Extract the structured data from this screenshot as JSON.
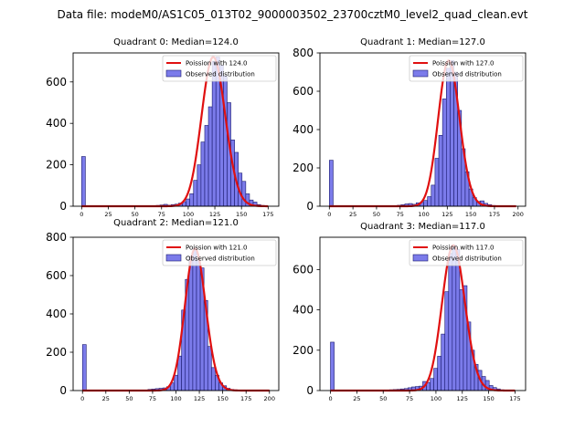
{
  "figure": {
    "suptitle": "Data file: modeM0/AS1C05_013T02_9000003502_23700cztM0_level2_quad_clean.evt"
  },
  "colors": {
    "hist_fill": "#7b7bea",
    "hist_edge": "#1a1a6e",
    "poisson_line": "#e01010"
  },
  "chart_data": [
    {
      "type": "bar",
      "title": "Quadrant 0: Median=124.0",
      "xlabel": "",
      "ylabel": "",
      "xlim": [
        -8,
        185
      ],
      "ylim": [
        0,
        740
      ],
      "xticks": [
        0,
        25,
        50,
        75,
        100,
        125,
        150,
        175
      ],
      "yticks": [
        0,
        200,
        400,
        600
      ],
      "bin_width": 3.5,
      "zero_bin": 240,
      "hist_bins": [
        [
          70,
          4
        ],
        [
          73.5,
          6
        ],
        [
          77,
          9
        ],
        [
          80.5,
          5
        ],
        [
          84,
          8
        ],
        [
          87.5,
          10
        ],
        [
          91,
          15
        ],
        [
          94.5,
          22
        ],
        [
          98,
          35
        ],
        [
          101.5,
          60
        ],
        [
          105,
          125
        ],
        [
          108.5,
          200
        ],
        [
          112,
          310
        ],
        [
          115.5,
          390
        ],
        [
          119,
          480
        ],
        [
          122.5,
          700
        ],
        [
          126,
          720
        ],
        [
          129.5,
          680
        ],
        [
          133,
          630
        ],
        [
          136.5,
          500
        ],
        [
          140,
          320
        ],
        [
          143.5,
          260
        ],
        [
          147,
          160
        ],
        [
          150.5,
          120
        ],
        [
          154,
          60
        ],
        [
          157.5,
          30
        ],
        [
          161,
          20
        ],
        [
          164.5,
          8
        ],
        [
          168,
          4
        ]
      ],
      "poisson_mean": 124.0,
      "curve_range": [
        0,
        175
      ],
      "legend": {
        "line_label": "Poission with 124.0",
        "bar_label": "Observed distribution",
        "position": "upper right"
      }
    },
    {
      "type": "bar",
      "title": "Quadrant 1: Median=127.0",
      "xlabel": "",
      "ylabel": "",
      "xlim": [
        -10,
        208
      ],
      "ylim": [
        0,
        800
      ],
      "xticks": [
        0,
        25,
        50,
        75,
        100,
        125,
        150,
        175,
        200
      ],
      "yticks": [
        0,
        200,
        400,
        600,
        800
      ],
      "bin_width": 4,
      "zero_bin": 240,
      "hist_bins": [
        [
          72,
          5
        ],
        [
          76,
          8
        ],
        [
          80,
          12
        ],
        [
          84,
          14
        ],
        [
          88,
          10
        ],
        [
          92,
          18
        ],
        [
          96,
          20
        ],
        [
          100,
          30
        ],
        [
          104,
          50
        ],
        [
          108,
          110
        ],
        [
          112,
          250
        ],
        [
          116,
          370
        ],
        [
          120,
          560
        ],
        [
          124,
          720
        ],
        [
          128,
          760
        ],
        [
          132,
          700
        ],
        [
          136,
          500
        ],
        [
          140,
          300
        ],
        [
          144,
          180
        ],
        [
          148,
          90
        ],
        [
          152,
          45
        ],
        [
          156,
          25
        ],
        [
          160,
          28
        ],
        [
          164,
          15
        ],
        [
          168,
          8
        ],
        [
          172,
          4
        ],
        [
          176,
          2
        ]
      ],
      "poisson_mean": 127.0,
      "curve_range": [
        0,
        198
      ],
      "legend": {
        "line_label": "Poission with 127.0",
        "bar_label": "Observed distribution",
        "position": "upper right"
      }
    },
    {
      "type": "bar",
      "title": "Quadrant 2: Median=121.0",
      "xlabel": "",
      "ylabel": "",
      "xlim": [
        -10,
        210
      ],
      "ylim": [
        0,
        800
      ],
      "xticks": [
        0,
        25,
        50,
        75,
        100,
        125,
        150,
        175,
        200
      ],
      "yticks": [
        0,
        200,
        400,
        600,
        800
      ],
      "bin_width": 4,
      "zero_bin": 240,
      "hist_bins": [
        [
          70,
          6
        ],
        [
          74,
          8
        ],
        [
          78,
          10
        ],
        [
          82,
          12
        ],
        [
          86,
          14
        ],
        [
          90,
          20
        ],
        [
          94,
          40
        ],
        [
          98,
          80
        ],
        [
          102,
          180
        ],
        [
          106,
          420
        ],
        [
          110,
          580
        ],
        [
          114,
          700
        ],
        [
          118,
          740
        ],
        [
          122,
          680
        ],
        [
          126,
          640
        ],
        [
          130,
          470
        ],
        [
          134,
          230
        ],
        [
          138,
          120
        ],
        [
          142,
          80
        ],
        [
          146,
          40
        ],
        [
          150,
          25
        ],
        [
          154,
          12
        ],
        [
          158,
          6
        ],
        [
          162,
          4
        ],
        [
          166,
          2
        ]
      ],
      "poisson_mean": 121.0,
      "curve_range": [
        0,
        200
      ],
      "legend": {
        "line_label": "Poission with 121.0",
        "bar_label": "Observed distribution",
        "position": "upper right"
      }
    },
    {
      "type": "bar",
      "title": "Quadrant 3: Median=117.0",
      "xlabel": "",
      "ylabel": "",
      "xlim": [
        -10,
        185
      ],
      "ylim": [
        0,
        760
      ],
      "xticks": [
        0,
        25,
        50,
        75,
        100,
        125,
        150,
        175
      ],
      "yticks": [
        0,
        200,
        400,
        600
      ],
      "bin_width": 3.5,
      "zero_bin": 240,
      "hist_bins": [
        [
          56,
          4
        ],
        [
          59.5,
          5
        ],
        [
          63,
          6
        ],
        [
          66.5,
          8
        ],
        [
          70,
          10
        ],
        [
          73.5,
          14
        ],
        [
          77,
          18
        ],
        [
          80.5,
          20
        ],
        [
          84,
          22
        ],
        [
          87.5,
          45
        ],
        [
          91,
          40
        ],
        [
          94.5,
          60
        ],
        [
          98,
          110
        ],
        [
          101.5,
          170
        ],
        [
          105,
          280
        ],
        [
          108.5,
          490
        ],
        [
          112,
          680
        ],
        [
          115.5,
          720
        ],
        [
          119,
          700
        ],
        [
          122.5,
          500
        ],
        [
          126,
          520
        ],
        [
          129.5,
          340
        ],
        [
          133,
          200
        ],
        [
          136.5,
          130
        ],
        [
          140,
          100
        ],
        [
          143.5,
          70
        ],
        [
          147,
          50
        ],
        [
          150.5,
          25
        ],
        [
          154,
          15
        ],
        [
          157.5,
          8
        ],
        [
          161,
          4
        ]
      ],
      "poisson_mean": 117.0,
      "curve_range": [
        0,
        175
      ],
      "legend": {
        "line_label": "Poission with 117.0",
        "bar_label": "Observed distribution",
        "position": "upper right"
      }
    }
  ]
}
